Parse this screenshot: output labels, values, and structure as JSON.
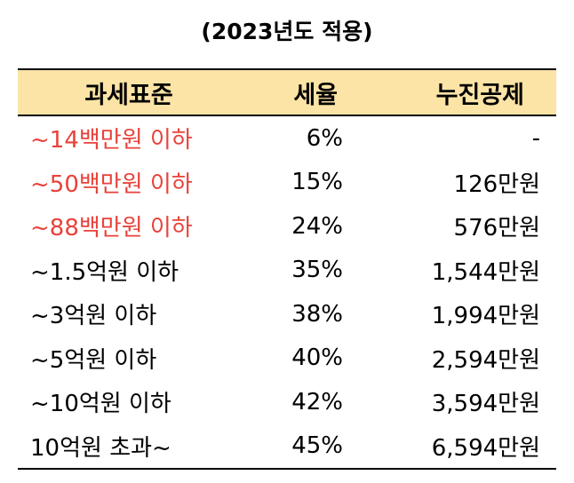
{
  "title": "(2023년도 적용)",
  "table": {
    "headers": [
      "과세표준",
      "세율",
      "누진공제"
    ],
    "highlight_color": "#e8423a",
    "header_bg": "#fce4a6",
    "rows": [
      {
        "range": "~14백만원 이하",
        "rate": "6%",
        "deduction": "-",
        "highlight": true
      },
      {
        "range": "~50백만원 이하",
        "rate": "15%",
        "deduction": "126만원",
        "highlight": true
      },
      {
        "range": "~88백만원 이하",
        "rate": "24%",
        "deduction": "576만원",
        "highlight": true
      },
      {
        "range": "~1.5억원 이하",
        "rate": "35%",
        "deduction": "1,544만원",
        "highlight": false
      },
      {
        "range": "~3억원 이하",
        "rate": "38%",
        "deduction": "1,994만원",
        "highlight": false
      },
      {
        "range": "~5억원 이하",
        "rate": "40%",
        "deduction": "2,594만원",
        "highlight": false
      },
      {
        "range": "~10억원 이하",
        "rate": "42%",
        "deduction": "3,594만원",
        "highlight": false
      },
      {
        "range": "10억원 초과~",
        "rate": "45%",
        "deduction": "6,594만원",
        "highlight": false
      }
    ]
  }
}
